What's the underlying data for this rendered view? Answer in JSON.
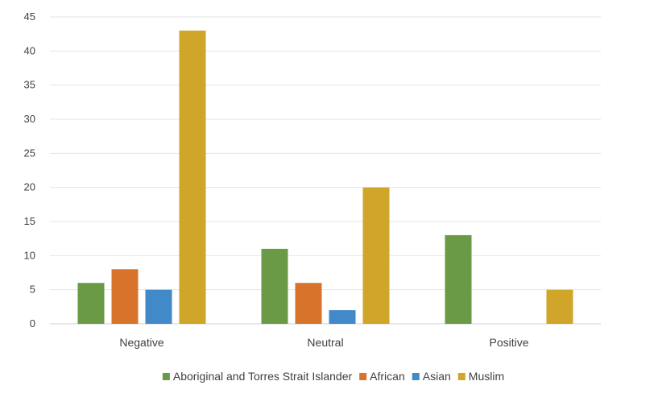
{
  "chart_data": {
    "type": "bar",
    "title": "",
    "xlabel": "",
    "ylabel": "",
    "categories": [
      "Negative",
      "Neutral",
      "Positive"
    ],
    "series": [
      {
        "name": "Aboriginal and Torres Strait Islander",
        "color": "#6a9a45",
        "values": [
          6,
          11,
          13
        ]
      },
      {
        "name": "African",
        "color": "#d8732c",
        "values": [
          8,
          6,
          0
        ]
      },
      {
        "name": "Asian",
        "color": "#4189c9",
        "values": [
          5,
          2,
          0
        ]
      },
      {
        "name": "Muslim",
        "color": "#cfa52a",
        "values": [
          43,
          20,
          5
        ]
      }
    ],
    "ylim": [
      0,
      45
    ],
    "yticks": [
      "0",
      "5",
      "10",
      "15",
      "20",
      "25",
      "30",
      "35",
      "40",
      "45"
    ],
    "grid": true,
    "legend_position": "bottom"
  }
}
